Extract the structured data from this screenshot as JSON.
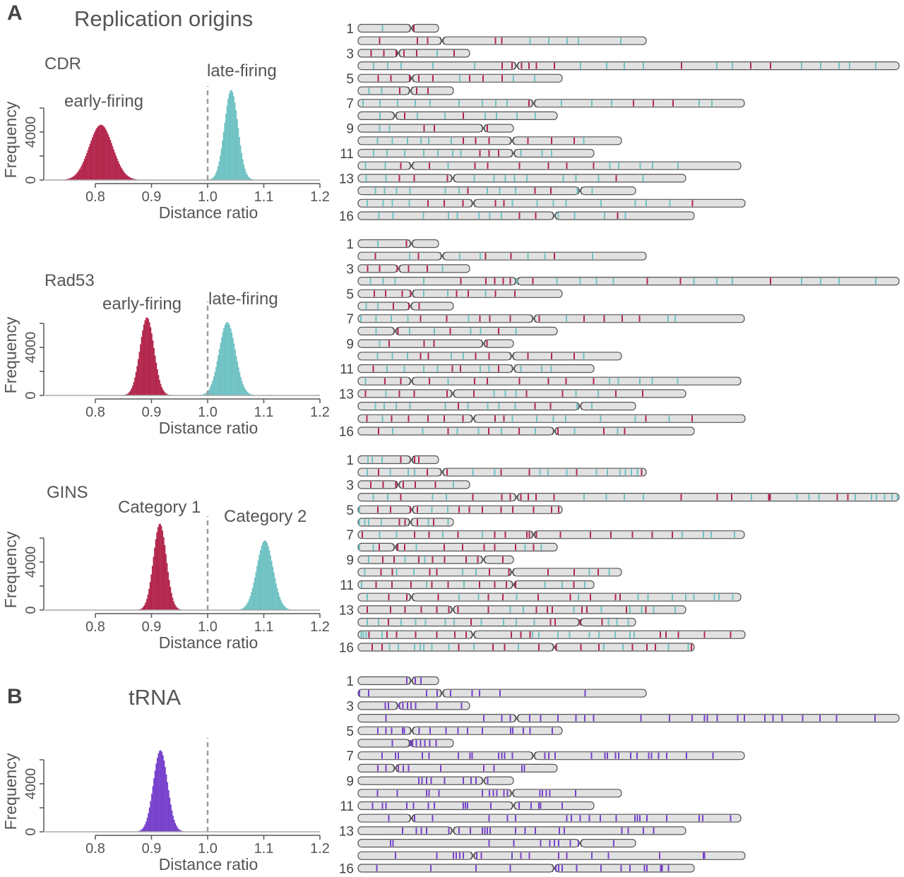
{
  "labels": {
    "panel_a": "A",
    "panel_b": "B",
    "a_title": "Replication origins",
    "b_title": "tRNA"
  },
  "colors": {
    "red": "#b3264c",
    "teal": "#6fc2c3",
    "purple": "#7740cc",
    "chromosome_fill": "#e1e1e1",
    "chromosome_stroke": "#555555",
    "dashed_line": "#9e9e9e"
  },
  "chart_data": [
    {
      "type": "bar",
      "name": "CDR",
      "title": "CDR",
      "xlabel": "Distance ratio",
      "ylabel": "Frequency",
      "xlim": [
        0.71,
        1.2
      ],
      "ylim": [
        0,
        6000
      ],
      "x_ticks": [
        "0.8",
        "0.9",
        "1.0",
        "1.1",
        "1.2"
      ],
      "y_ticks": [
        "0",
        "4000"
      ],
      "reference_line_x": 1.0,
      "distributions": [
        {
          "label": "early-firing",
          "color": "red",
          "mean": 0.81,
          "sd": 0.021,
          "peak": 4600
        },
        {
          "label": "late-firing",
          "color": "teal",
          "mean": 1.042,
          "sd": 0.012,
          "peak": 7500
        }
      ]
    },
    {
      "type": "bar",
      "name": "Rad53",
      "title": "Rad53",
      "xlabel": "Distance ratio",
      "ylabel": "Frequency",
      "xlim": [
        0.71,
        1.2
      ],
      "ylim": [
        0,
        6000
      ],
      "x_ticks": [
        "0.8",
        "0.9",
        "1.0",
        "1.1",
        "1.2"
      ],
      "y_ticks": [
        "0",
        "4000"
      ],
      "reference_line_x": 1.0,
      "distributions": [
        {
          "label": "early-firing",
          "color": "red",
          "mean": 0.892,
          "sd": 0.0125,
          "peak": 6500
        },
        {
          "label": "late-firing",
          "color": "teal",
          "mean": 1.035,
          "sd": 0.0145,
          "peak": 6100
        }
      ]
    },
    {
      "type": "bar",
      "name": "GINS",
      "title": "GINS",
      "xlabel": "Distance ratio",
      "ylabel": "Frequency",
      "xlim": [
        0.71,
        1.2
      ],
      "ylim": [
        0,
        6000
      ],
      "x_ticks": [
        "0.8",
        "0.9",
        "1.0",
        "1.1",
        "1.2"
      ],
      "y_ticks": [
        "0",
        "4000"
      ],
      "reference_line_x": 1.0,
      "distributions": [
        {
          "label": "Category 1",
          "color": "red",
          "mean": 0.915,
          "sd": 0.0115,
          "peak": 7200
        },
        {
          "label": "Category 2",
          "color": "teal",
          "mean": 1.102,
          "sd": 0.0145,
          "peak": 5800
        }
      ]
    },
    {
      "type": "bar",
      "name": "tRNA",
      "title": "tRNA",
      "xlabel": "Distance ratio",
      "ylabel": "Frequency",
      "xlim": [
        0.71,
        1.2
      ],
      "ylim": [
        0,
        6000
      ],
      "x_ticks": [
        "0.8",
        "0.9",
        "1.0",
        "1.1",
        "1.2"
      ],
      "y_ticks": [
        "0",
        "4000"
      ],
      "reference_line_x": 1.0,
      "distributions": [
        {
          "label": "",
          "color": "purple",
          "mean": 0.916,
          "sd": 0.0125,
          "peak": 6800
        }
      ]
    }
  ],
  "chromosomes": {
    "row_labels": {
      "0": "1",
      "2": "3",
      "4": "5",
      "6": "7",
      "8": "9",
      "10": "11",
      "12": "13",
      "15": "16"
    },
    "lengths_kb": [
      228,
      816,
      316,
      1532,
      578,
      270,
      1094,
      564,
      440,
      746,
      668,
      1084,
      928,
      786,
      1096,
      952
    ],
    "centromeres_kb": [
      151,
      238,
      114,
      449,
      152,
      148,
      497,
      105,
      355,
      436,
      440,
      151,
      268,
      628,
      326,
      556
    ]
  },
  "maps": [
    {
      "panel": "CDR",
      "marks": [
        "t69 r158",
        "r61 r168 r197 r389 r407 t487 t540 t592 t624 t744",
        "r37 r73 r108 r130 r166 t224 r272",
        "t44 t84 t122 t212 t330 r408 r436 r463 r484 r505 r556 t630 t704 t754 t808 r916 t1016 t1060 r1112 r1168 t1256 t1310 t1362 t1392 t1466",
        "r57 r93 r146 r172 r212 t288 r316 r354 r408 t440 t500",
        "t31 t67 r118 r166 r198",
        "t14 t62 t112 t162 t204 t286 t352 t390 t422 r484 t576 t662 t718 r780 r836 r892 t966 t1002",
        "t62 r132 t168 t246 r298 t360 t392 t450 t502",
        "t61 t89 r187 r216 r366",
        "t55 t97 t140 t178 t200 t264 r298 r333 r371 r481 r548 r612 t639",
        "t44 t82 t132 t186 t226 t268 t291 r345 r371 r398 t461 t521 t548",
        "t21 t77 r121 r202 t255 r331 r367 r457 r539 r591 r667 t713 t738 t799 t834 t906",
        "t23 t79 r117 r159 r253 t329 t385 t417 t443 t478 t581 t617 t681 r731 t807",
        "t49 t75 t109 t147 t247 t286 r311 t366 t401 t446 r501 r546 t621 t663",
        "t26 t71 t97 t145 r198 r244 r297 r389 r413 t437 t507 t553 t589 t688 t785 t816 t883 r947",
        "t59 t99 t185 t256 t281 t342 t373 t406 r457 r503 t567 t613 t698 r735 t757"
      ]
    },
    {
      "panel": "Rad53",
      "marks": [
        "t56 r137",
        "r49 t146 r171 t288 t346 r361 r433 t481 t529 r556 t664",
        "r27 r61 r111 r143 r196 t239",
        "t35 t71 t105 t186 r291 r362 r387 r411 r431 t450 r495 t563 t629 t675 t723 r819 r913 t951 t1016 t1060 r1168 t1256 t1310 t1362 t1466",
        "r46 r78 r125 r149 t186 t254 r279 r312 t361 r389 r444",
        "t23 t56 r100 r144 r173",
        "t8 t51 t94 t141 r177 r251 t313 r345 r373 r431 r513 t590 r640 r697 r748 r797 t878 t898",
        "t51 r113 t146 t216 r261 t319 t347 r398 t447",
        "t61 r88 r187 r215 r365",
        "t55 t97 t140 r177 r199 t264 t298 r333 r371 r481 r548 r612 t639",
        "r43 t82 t131 t186 t225 r267 r290 t346 t371 r398 t461 t520 t547",
        "t21 r76 r121 r202 t255 r330 r366 r457 r539 r589 r667 t712 t737 t798 t833 t905",
        "r21 t79 r117 r159 r252 r328 t385 t417 t447 r477 r579 t617 t680 r730 r806",
        "t49 t74 t108 t147 t247 r284 t311 t367 t399 t445 r501 r545 t620 t662",
        "r25 t69 r95 r143 r198 r244 r297 r388 r413 t437 t506 t553 t588 t687 t785 r815 t881 r946",
        "r58 t98 t183 r255 t281 t341 r370 t406 r456 t502 r566 t613 r696 t735 r755"
      ]
    },
    {
      "panel": "GINS",
      "marks": [
        "t28 t40 t68 r121 r160 r172",
        "t26 r58 t91 t142 t160 r196 r252 t325 t387 r405 r485 t515 t538 t591 r619 t675 t706 t742 t757 t774 t791 r803",
        "r36 r71 r107 r128 r162 r219 t270",
        "t43 t84 r121 t211 t250 r325 r407 r431 r461 r482 r504 r555 t640 t703 t754 t808 r915 r1017 r1058 t1114 r1163 r1167 t1243 t1277 t1305 r1357 r1387 t1408 t1454 t1468 t1491 t1512 t1527",
        "t4 r56 r92 r148 r168 t209 t254 r286 r315 r352 r405 r438 r497 r548 r568",
        "t4 t19 t30 t66 r117 r133 r168 t199 r214 t255",
        "r12 t61 t109 r160 r201 t240 r283 t352 r387 r417 r478 r485 r505 r573 r658 r716 r777 r833 r890 t918 t978 t1000 t1066",
        "t4 t43 r60 r112 r132 t165 r244 r296 r357 r387 r446 t473 r497 t519",
        "t30 r70 r102 t133 r172 t189 r211 r245 r306 r339 r410",
        "t19 r65 r97 t109 t158 r203 r223 t296 t334 r372 r427 r538 r612 t655 r680 t711",
        "t10 r51 r96 r150 t194 r209 r255 t300 r344 r387 r420 r446 t529 t578 r611 t642",
        "t26 r87 r138 r227 t286 t341 r369 r410 t449 r510 r601 t624 r658 r729 r742 t793 t821 t890 t928 t951 t1009 t1022 t1061",
        "r26 r92 r133 r179 r223 r257 r283 r369 t431 t468 r505 r536 r550 t611 r634 r648 t689 r760 t770 t803 r815 t837 t898",
        "t26 t58 r86 t122 t163 t191 t247 t272 r320 t349 t412 t448 t499 r545 r558 r629 r691 t709 t733 t765",
        "t9 t15 t23 r31 t68 r82 r109 r163 r223 r274 r306 r434 r461 r487 t494 t512 t566 t599 t655 t682 t728 t770 t782 r856 r872 r907 r981 r1055",
        "r40 r68 t89 t114 t160 t176 t186 t209 t257 r285 t328 r382 r415 t454 r512 r561 r631 r682 t696 t750 r777 r818 r842 t879 t935 r944"
      ]
    },
    {
      "panel": "tRNA",
      "marks": [
        "p138 p162 p178",
        "p4 p30 p194 p224 p262 p323 p344 p402 p643",
        "p77 p86 p117 p127 p140 p150 p163 p223 p293",
        "p79 p356 p407 p431 p486 p517 p566 p617 p642 p667 p801 p882 p946 p981 p989 p1017 p1075 p1094 p1152 p1175 p1201 p1259 p1308 p1355 p1464",
        "p56 p79 p95 p126 p131 p173 p204 p249 p283 p310 p352 p432 p438 p468 p487 p550",
        "p97 p148 p154 p165 p177 p189 p203 p221",
        "p68 p106 p114 p182 p201 p284 p317 p323 p398 p407 p415 p437 p529 p540 p558 p661 p699 p706 p729 p738 p772 p790 p823 p831 p851 p874 p930 p1005",
        "p56 p79 p114 p128 p143 p234 p356 p385 p464 p471",
        "p172 p181 p194 p207 p245 p298 p320 p334 p367",
        "p55 p111 p194 p201 p229 p352 p372 p383 p393 p413 p423 p515 p522 p533 p543 p616",
        "p41 p69 p79 p138 p157 p199 p216 p298 p304 p310 p376 p456 p490 p512 p517 p578",
        "p87 p160 p211 p371 p423 p446 p591 p604 p629 p655 p686 p731 p784 p791 p798 p818 p874 p966 p976 p1055",
        "p126 p165 p179 p194 p257 p286 p318 p352 p359 p366 p374 p446 p473 p502 p570 p584 p747 p765 p808 p837",
        "p92 p99 p371 p441 p517 p543 p556 p568 p601 p624 p724",
        "p106 p223 p270 p278 p288 p298 p336 p349 p436 p461 p485 p568 p591 p662 p709 p854 p978 p981",
        "p53 p206 p334 p431 p560 p568 p578 p619 p688 p745 p770 p811 p818 p857 p861 p879"
      ]
    }
  ]
}
